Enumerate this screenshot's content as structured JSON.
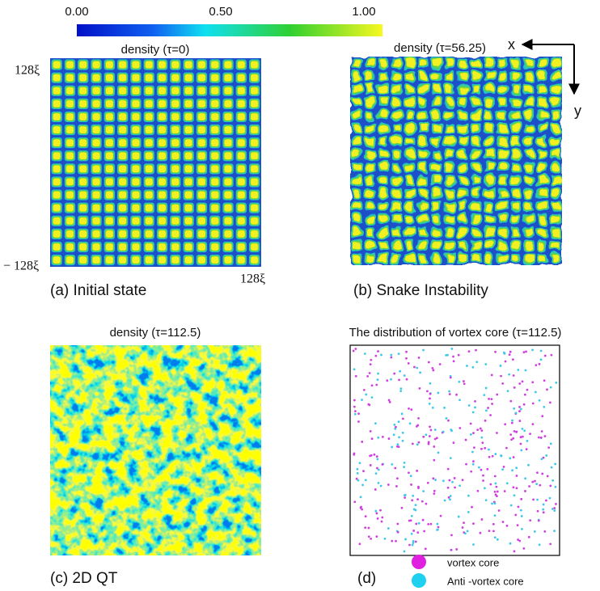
{
  "colorbar": {
    "labels": [
      "0.00",
      "0.50",
      "1.00"
    ]
  },
  "panels": [
    {
      "title": "density (τ=0)",
      "caption": "(a) Initial state",
      "axis_labels": [
        "128ξ",
        "− 128ξ",
        "128ξ"
      ]
    },
    {
      "title": "density (τ=56.25)",
      "caption": "(b)   Snake Instability",
      "axes": [
        "x",
        "y"
      ]
    },
    {
      "title": "density (τ=112.5)",
      "caption": "(c)  2D QT"
    },
    {
      "title": "The distribution of vortex core (τ=112.5)",
      "caption": "(d)",
      "legend": [
        "vortex core",
        "Anti -vortex core"
      ]
    }
  ]
}
